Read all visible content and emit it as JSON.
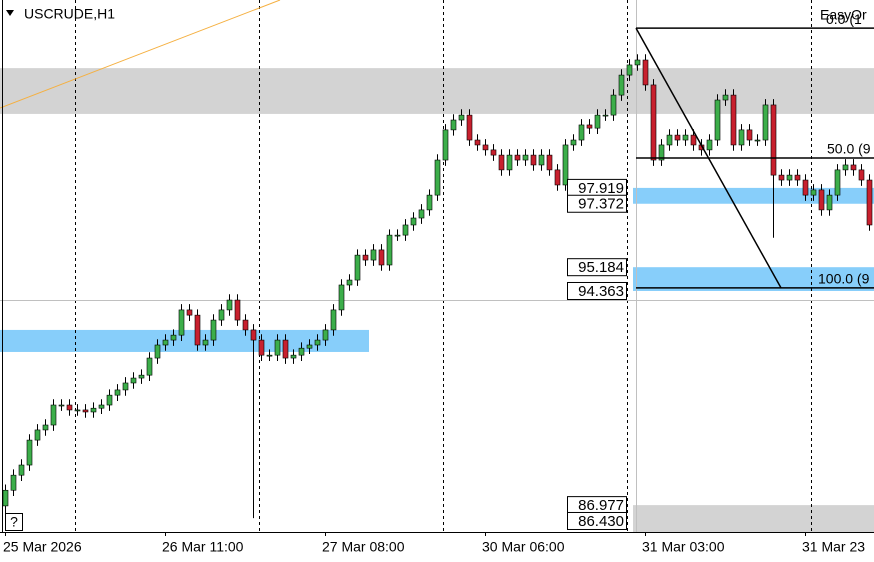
{
  "chart_data": {
    "type": "candlestick",
    "title": "USCRUDE,H1",
    "corner_text": "EasyOr",
    "help_button": "?",
    "categories": [
      "25 Mar 2026",
      null,
      null,
      null,
      null,
      null,
      null,
      null,
      null,
      null,
      null,
      null,
      null,
      null,
      null,
      null,
      null,
      null,
      null,
      null,
      "26 Mar 11:00",
      null,
      null,
      null,
      null,
      null,
      null,
      null,
      null,
      null,
      null,
      null,
      null,
      null,
      null,
      null,
      null,
      null,
      null,
      null,
      "27 Mar 08:00",
      null,
      null,
      null,
      null,
      null,
      null,
      null,
      null,
      null,
      null,
      null,
      null,
      null,
      null,
      null,
      null,
      null,
      null,
      null,
      "30 Mar 06:00",
      null,
      null,
      null,
      null,
      null,
      null,
      null,
      null,
      null,
      null,
      null,
      null,
      null,
      null,
      null,
      null,
      null,
      null,
      null,
      "31 Mar 03:00",
      null,
      null,
      null,
      null,
      null,
      null,
      null,
      null,
      null,
      null,
      null,
      null,
      null,
      null,
      null,
      null,
      null,
      null,
      null,
      "31 Mar 23",
      null,
      null,
      null,
      null,
      null,
      null,
      null,
      null
    ],
    "open": [
      86.95,
      87.49,
      88.01,
      88.36,
      89.22,
      89.57,
      89.74,
      90.43,
      90.43,
      90.26,
      90.26,
      90.19,
      90.32,
      90.43,
      90.77,
      90.95,
      91.19,
      91.36,
      91.46,
      92.05,
      92.5,
      92.67,
      92.84,
      93.71,
      93.53,
      92.5,
      92.67,
      93.36,
      93.71,
      94.05,
      93.36,
      93.02,
      92.67,
      92.15,
      92.15,
      92.67,
      92.05,
      92.15,
      92.39,
      92.5,
      92.67,
      93.02,
      93.71,
      94.57,
      94.74,
      95.6,
      95.43,
      95.78,
      95.26,
      96.29,
      96.29,
      96.64,
      96.88,
      97.16,
      97.67,
      98.88,
      99.92,
      100.26,
      100.43,
      99.57,
      99.4,
      99.23,
      99.05,
      98.54,
      99.05,
      98.88,
      99.05,
      98.71,
      99.05,
      98.54,
      98.02,
      99.4,
      99.57,
      100.09,
      99.98,
      100.43,
      100.43,
      101.12,
      101.81,
      102.16,
      102.33,
      101.47,
      98.88,
      99.4,
      99.74,
      99.57,
      99.74,
      99.4,
      99.23,
      99.57,
      100.95,
      101.12,
      99.4,
      99.92,
      99.57,
      99.57,
      100.78,
      98.36,
      98.19,
      98.36,
      98.19,
      97.67,
      97.85,
      97.16,
      97.67,
      98.54,
      98.71,
      98.54,
      98.19
    ],
    "high": [
      87.69,
      88.21,
      88.56,
      89.42,
      89.77,
      89.94,
      90.63,
      90.63,
      90.63,
      90.46,
      90.46,
      90.52,
      90.63,
      90.97,
      91.15,
      91.39,
      91.56,
      91.66,
      92.25,
      92.7,
      92.87,
      93.04,
      93.91,
      93.91,
      93.73,
      92.87,
      93.56,
      93.91,
      94.25,
      94.25,
      93.56,
      93.22,
      92.87,
      92.35,
      92.87,
      92.87,
      92.35,
      92.59,
      92.7,
      92.87,
      93.22,
      93.91,
      94.77,
      94.94,
      95.8,
      95.8,
      95.98,
      95.98,
      96.49,
      96.49,
      96.84,
      97.08,
      97.36,
      97.87,
      99.08,
      100.12,
      100.46,
      100.63,
      100.63,
      99.77,
      99.6,
      99.43,
      99.25,
      99.25,
      99.25,
      99.25,
      99.25,
      99.25,
      99.25,
      98.74,
      99.6,
      99.77,
      100.29,
      100.29,
      100.63,
      100.63,
      101.32,
      102.01,
      102.36,
      102.53,
      102.53,
      101.67,
      99.6,
      99.94,
      99.94,
      99.94,
      99.94,
      99.6,
      99.77,
      101.15,
      101.32,
      101.32,
      100.12,
      100.12,
      99.77,
      100.98,
      100.98,
      98.56,
      98.56,
      98.56,
      98.39,
      98.05,
      98.05,
      97.87,
      98.74,
      98.91,
      98.91,
      98.74,
      98.39
    ],
    "low": [
      86.55,
      87.29,
      87.81,
      88.16,
      89.02,
      89.37,
      89.54,
      90.23,
      90.06,
      90.06,
      89.99,
      89.99,
      90.12,
      90.23,
      90.57,
      90.75,
      90.99,
      91.16,
      91.26,
      91.85,
      92.3,
      92.47,
      92.64,
      93.33,
      92.3,
      92.3,
      92.47,
      93.16,
      93.51,
      93.16,
      92.82,
      86.53,
      91.95,
      91.95,
      91.95,
      91.85,
      91.85,
      91.95,
      92.19,
      92.3,
      92.47,
      92.82,
      93.51,
      94.37,
      94.54,
      95.23,
      95.23,
      95.06,
      95.06,
      96.09,
      96.09,
      96.44,
      96.68,
      96.96,
      97.47,
      98.68,
      99.72,
      100.06,
      99.37,
      99.2,
      99.03,
      98.85,
      98.34,
      98.34,
      98.68,
      98.68,
      98.51,
      98.51,
      98.34,
      97.82,
      97.82,
      99.2,
      99.37,
      99.78,
      99.78,
      100.23,
      100.23,
      100.92,
      101.61,
      101.96,
      101.27,
      98.68,
      98.68,
      99.2,
      99.37,
      99.37,
      99.2,
      99.03,
      99.03,
      99.37,
      100.75,
      99.2,
      99.2,
      99.37,
      99.37,
      99.37,
      96.2,
      97.99,
      97.99,
      97.99,
      97.47,
      97.47,
      96.96,
      96.96,
      97.47,
      98.34,
      98.34,
      97.99,
      96.44
    ],
    "close": [
      87.49,
      88.01,
      88.36,
      89.22,
      89.57,
      89.74,
      90.43,
      90.43,
      90.26,
      90.26,
      90.19,
      90.32,
      90.43,
      90.77,
      90.95,
      91.19,
      91.36,
      91.46,
      92.05,
      92.5,
      92.67,
      92.84,
      93.71,
      93.53,
      92.5,
      92.67,
      93.36,
      93.71,
      94.05,
      93.36,
      93.02,
      92.67,
      92.15,
      92.15,
      92.67,
      92.05,
      92.15,
      92.39,
      92.5,
      92.67,
      93.02,
      93.71,
      94.57,
      94.74,
      95.6,
      95.43,
      95.78,
      95.26,
      96.29,
      96.29,
      96.64,
      96.88,
      97.16,
      97.67,
      98.88,
      99.92,
      100.26,
      100.43,
      99.57,
      99.4,
      99.23,
      99.05,
      98.54,
      99.05,
      98.88,
      99.05,
      98.71,
      99.05,
      98.54,
      98.02,
      99.4,
      99.57,
      100.09,
      99.98,
      100.43,
      100.43,
      101.12,
      101.81,
      102.16,
      102.33,
      101.47,
      98.88,
      99.4,
      99.74,
      99.57,
      99.74,
      99.4,
      99.23,
      99.57,
      100.95,
      101.12,
      99.4,
      99.92,
      99.57,
      99.57,
      100.78,
      98.36,
      98.19,
      98.36,
      98.19,
      97.67,
      97.85,
      97.16,
      97.67,
      98.54,
      98.71,
      98.54,
      98.19,
      96.64
    ],
    "up_color": "#3cae4a",
    "down_color": "#c8202e",
    "ylim": [
      86.05,
      104.4
    ],
    "price_labels": [
      97.919,
      97.372,
      95.184,
      94.363,
      86.977,
      {
        "value": 86.43,
        "label": "86.430"
      }
    ],
    "zones": [
      {
        "from": 100.47,
        "to": 102.05,
        "start": 0,
        "end": 108,
        "color": "#d3d3d3"
      },
      {
        "from": 92.26,
        "to": 93.02,
        "start": 0,
        "end": 45,
        "color": "#87cefa"
      },
      {
        "from": 97.372,
        "to": 97.919,
        "start": 79,
        "end": 108,
        "color": "#87cefa"
      },
      {
        "from": 94.363,
        "to": 95.184,
        "start": 79,
        "end": 108,
        "color": "#87cefa"
      },
      {
        "from": 86.05,
        "to": 86.977,
        "start": 79,
        "end": 108,
        "color": "#d3d3d3"
      }
    ],
    "fibo_levels": [
      {
        "value": 103.43,
        "label": "0.0 (1"
      },
      {
        "value": 98.95,
        "label": "50.0 (9"
      },
      {
        "value": 94.47,
        "label": "100.0 (9"
      }
    ]
  }
}
